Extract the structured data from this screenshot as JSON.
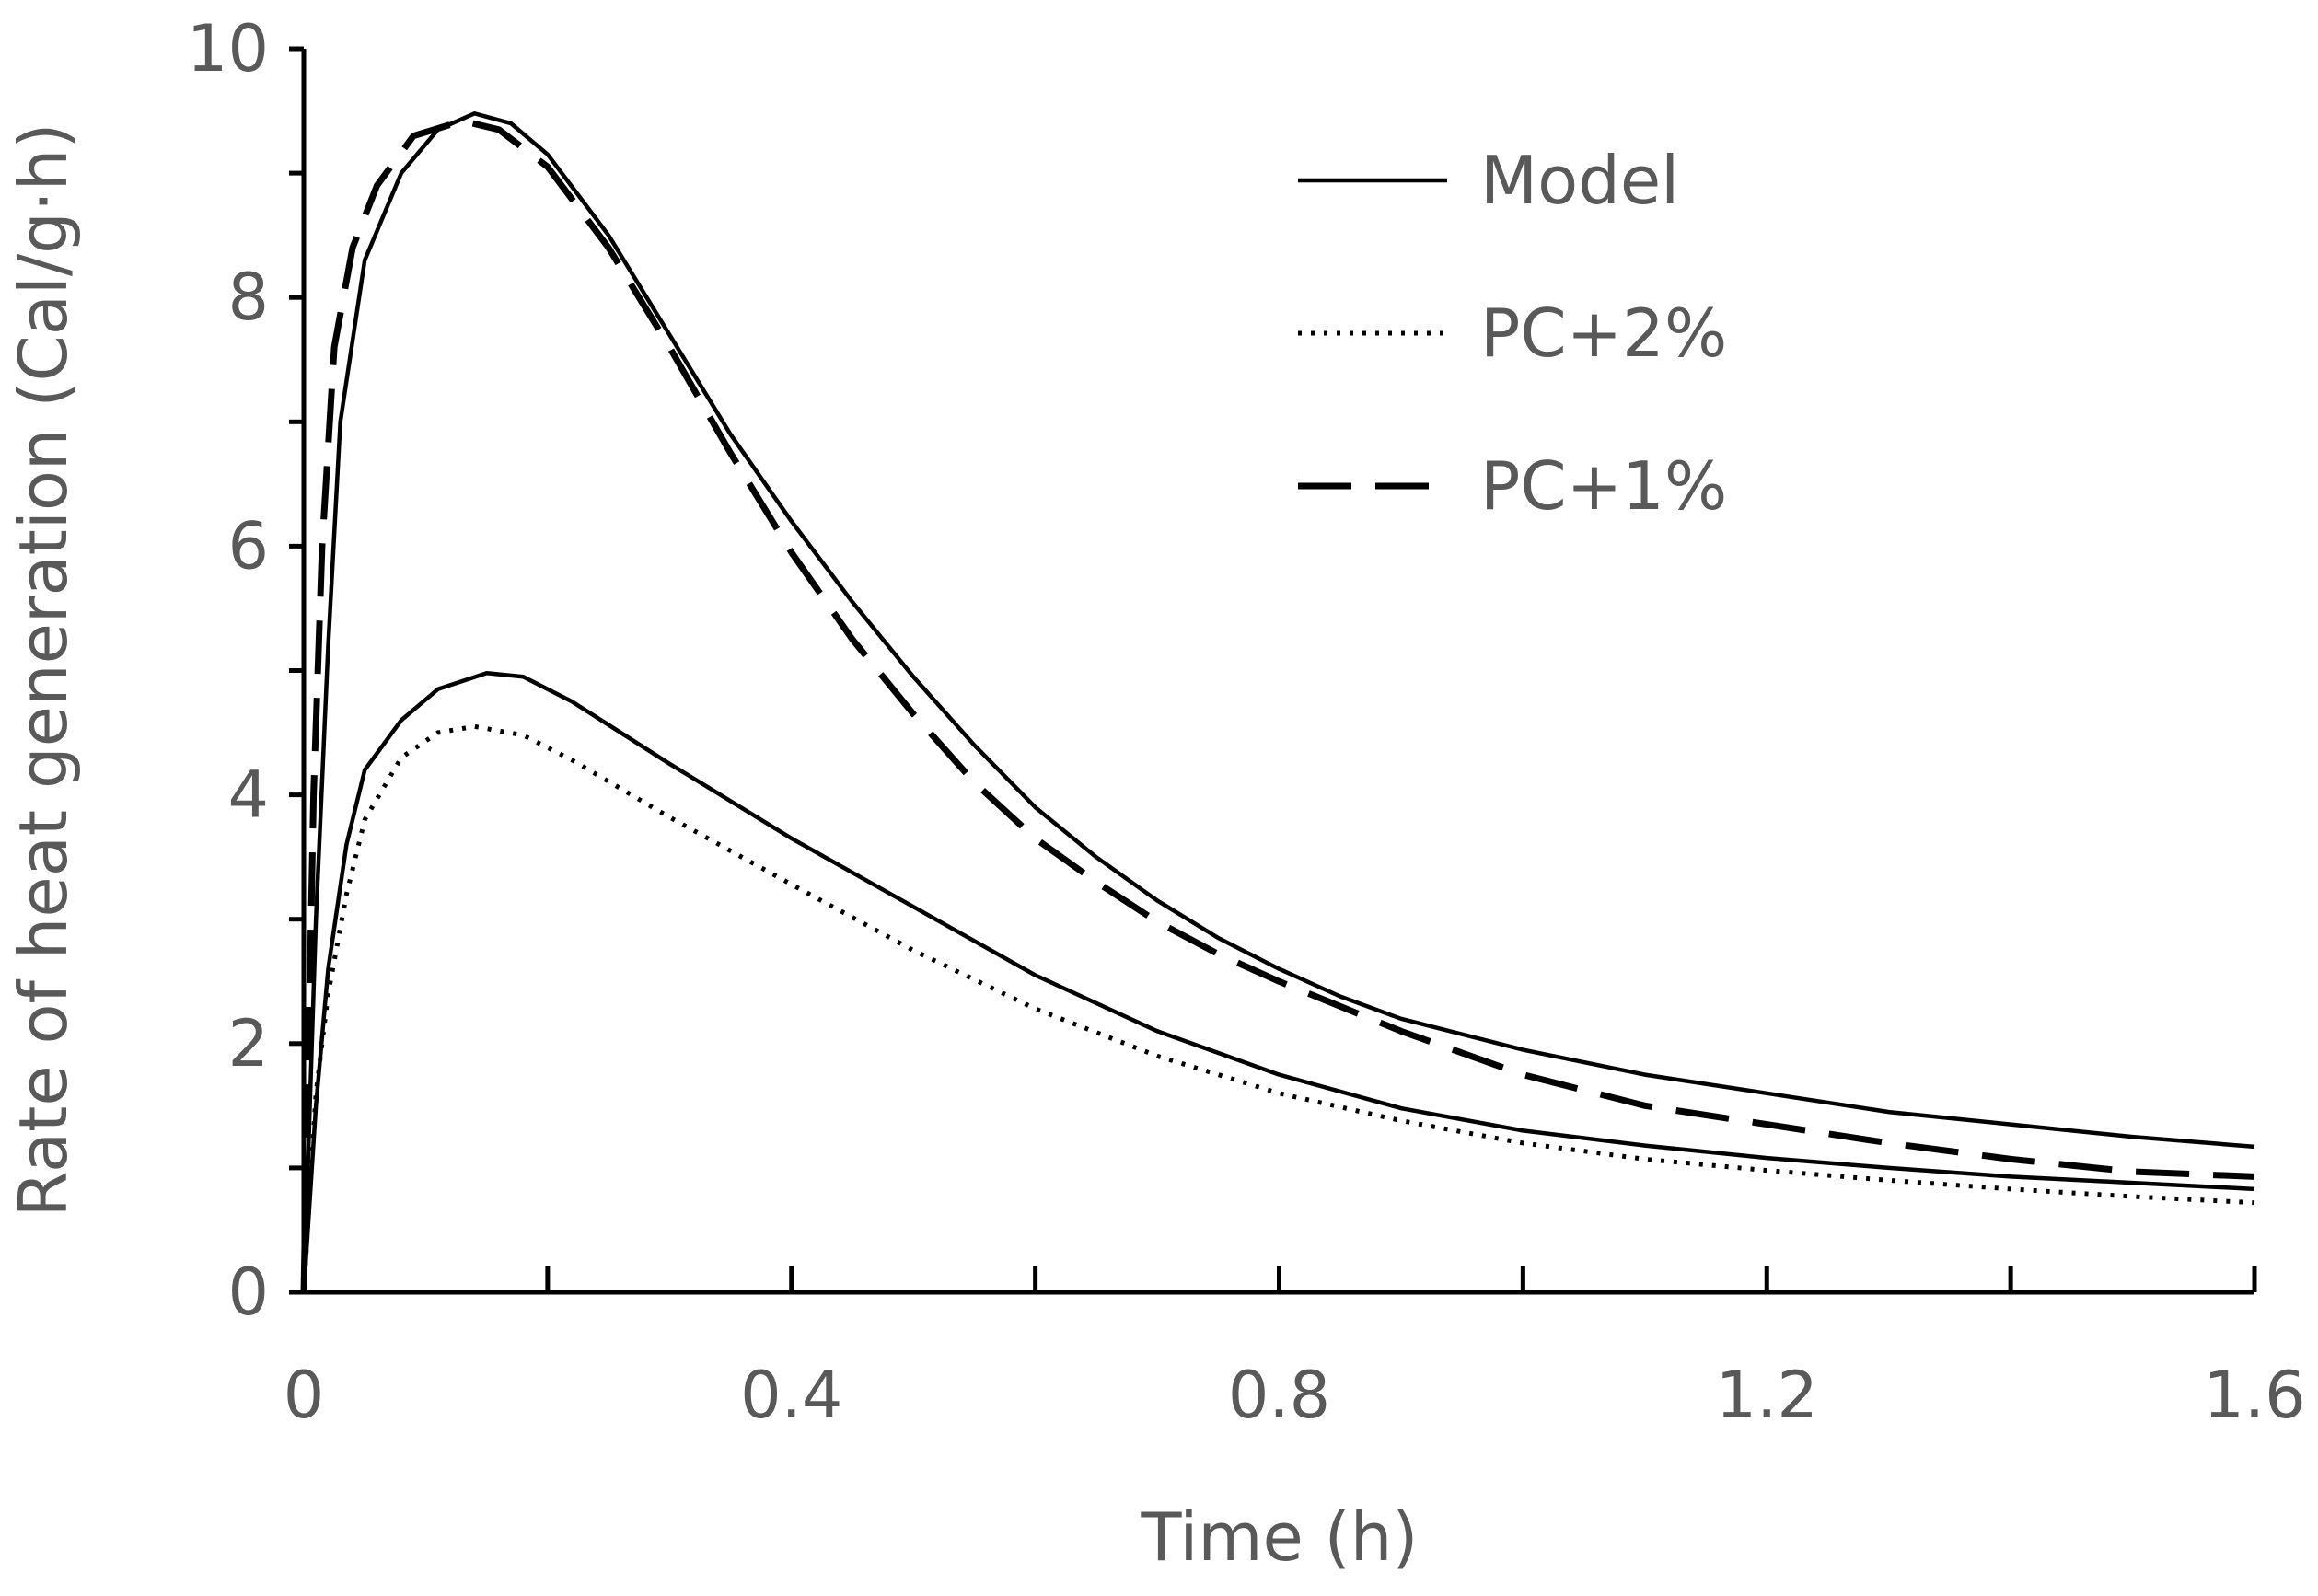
{
  "chart_data": {
    "type": "line",
    "title": "",
    "xlabel": "Time (h)",
    "ylabel": "Rate of heat generation (Cal/g·h)",
    "xlim": [
      0,
      1.6
    ],
    "ylim": [
      0,
      10
    ],
    "xticks": [
      0,
      0.4,
      0.8,
      1.2,
      1.6
    ],
    "xtick_labels": [
      "0",
      "0.4",
      "0.8",
      "1.2",
      "1.6"
    ],
    "x_minor_ticks": [
      0.2,
      0.6,
      1.0,
      1.4
    ],
    "yticks": [
      0,
      2,
      4,
      6,
      8,
      10
    ],
    "ytick_labels": [
      "0",
      "2",
      "4",
      "6",
      "8",
      "10"
    ],
    "y_minor_ticks": [
      1,
      3,
      5,
      7,
      9
    ],
    "grid": false,
    "legend_position": "top-right",
    "legend": [
      {
        "label": "Model",
        "style": "solid"
      },
      {
        "label": "PC+2%",
        "style": "dotted"
      },
      {
        "label": "PC+1%",
        "style": "dashed"
      }
    ],
    "series": [
      {
        "name": "Model (PC+1%)",
        "style": "solid",
        "legend_index": 0,
        "points": [
          [
            0,
            0
          ],
          [
            0.01,
            3
          ],
          [
            0.02,
            5.2
          ],
          [
            0.03,
            7
          ],
          [
            0.05,
            8.3
          ],
          [
            0.08,
            9
          ],
          [
            0.11,
            9.35
          ],
          [
            0.14,
            9.48
          ],
          [
            0.17,
            9.4
          ],
          [
            0.2,
            9.15
          ],
          [
            0.25,
            8.5
          ],
          [
            0.3,
            7.7
          ],
          [
            0.35,
            6.9
          ],
          [
            0.4,
            6.2
          ],
          [
            0.45,
            5.55
          ],
          [
            0.5,
            4.95
          ],
          [
            0.55,
            4.4
          ],
          [
            0.6,
            3.9
          ],
          [
            0.65,
            3.5
          ],
          [
            0.7,
            3.15
          ],
          [
            0.75,
            2.85
          ],
          [
            0.8,
            2.6
          ],
          [
            0.85,
            2.38
          ],
          [
            0.9,
            2.2
          ],
          [
            1.0,
            1.95
          ],
          [
            1.1,
            1.75
          ],
          [
            1.2,
            1.6
          ],
          [
            1.3,
            1.45
          ],
          [
            1.4,
            1.35
          ],
          [
            1.5,
            1.25
          ],
          [
            1.6,
            1.17
          ]
        ]
      },
      {
        "name": "PC+1%",
        "style": "dashed",
        "legend_index": 2,
        "points": [
          [
            0,
            0
          ],
          [
            0.008,
            4
          ],
          [
            0.015,
            6
          ],
          [
            0.025,
            7.6
          ],
          [
            0.04,
            8.4
          ],
          [
            0.06,
            8.9
          ],
          [
            0.09,
            9.3
          ],
          [
            0.13,
            9.42
          ],
          [
            0.16,
            9.35
          ],
          [
            0.2,
            9.05
          ],
          [
            0.25,
            8.4
          ],
          [
            0.3,
            7.6
          ],
          [
            0.35,
            6.75
          ],
          [
            0.4,
            5.95
          ],
          [
            0.45,
            5.25
          ],
          [
            0.5,
            4.65
          ],
          [
            0.55,
            4.1
          ],
          [
            0.6,
            3.65
          ],
          [
            0.65,
            3.3
          ],
          [
            0.7,
            2.98
          ],
          [
            0.75,
            2.72
          ],
          [
            0.8,
            2.5
          ],
          [
            0.9,
            2.1
          ],
          [
            1.0,
            1.75
          ],
          [
            1.1,
            1.5
          ],
          [
            1.2,
            1.35
          ],
          [
            1.3,
            1.2
          ],
          [
            1.4,
            1.07
          ],
          [
            1.5,
            0.97
          ],
          [
            1.6,
            0.93
          ]
        ]
      },
      {
        "name": "Model (PC+2%)",
        "style": "solid",
        "legend_index": 0,
        "points": [
          [
            0,
            0
          ],
          [
            0.01,
            1.5
          ],
          [
            0.02,
            2.6
          ],
          [
            0.035,
            3.6
          ],
          [
            0.05,
            4.2
          ],
          [
            0.08,
            4.6
          ],
          [
            0.11,
            4.85
          ],
          [
            0.15,
            4.98
          ],
          [
            0.18,
            4.95
          ],
          [
            0.22,
            4.75
          ],
          [
            0.3,
            4.25
          ],
          [
            0.4,
            3.65
          ],
          [
            0.5,
            3.1
          ],
          [
            0.6,
            2.55
          ],
          [
            0.7,
            2.1
          ],
          [
            0.8,
            1.75
          ],
          [
            0.9,
            1.48
          ],
          [
            1.0,
            1.3
          ],
          [
            1.1,
            1.18
          ],
          [
            1.2,
            1.08
          ],
          [
            1.3,
            1.0
          ],
          [
            1.4,
            0.93
          ],
          [
            1.5,
            0.88
          ],
          [
            1.6,
            0.83
          ]
        ]
      },
      {
        "name": "PC+2%",
        "style": "dotted",
        "legend_index": 1,
        "points": [
          [
            0,
            0
          ],
          [
            0.01,
            1.6
          ],
          [
            0.02,
            2.4
          ],
          [
            0.035,
            3.2
          ],
          [
            0.05,
            3.8
          ],
          [
            0.08,
            4.3
          ],
          [
            0.11,
            4.5
          ],
          [
            0.14,
            4.55
          ],
          [
            0.18,
            4.48
          ],
          [
            0.22,
            4.28
          ],
          [
            0.3,
            3.82
          ],
          [
            0.4,
            3.28
          ],
          [
            0.5,
            2.75
          ],
          [
            0.6,
            2.28
          ],
          [
            0.7,
            1.9
          ],
          [
            0.8,
            1.6
          ],
          [
            0.9,
            1.38
          ],
          [
            1.0,
            1.2
          ],
          [
            1.1,
            1.07
          ],
          [
            1.2,
            0.98
          ],
          [
            1.3,
            0.9
          ],
          [
            1.4,
            0.83
          ],
          [
            1.5,
            0.77
          ],
          [
            1.6,
            0.72
          ]
        ]
      }
    ]
  }
}
